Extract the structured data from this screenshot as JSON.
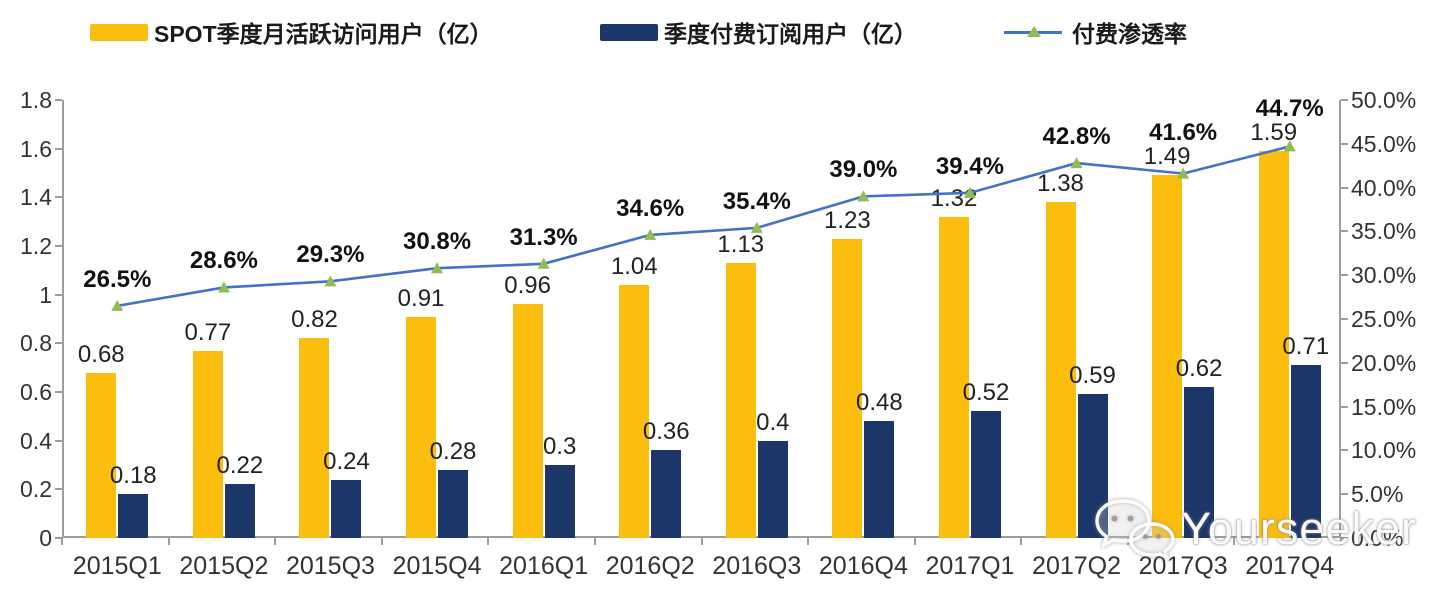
{
  "legend": [
    {
      "label": "SPOT季度月活跃访问用户（亿）",
      "color": "#FBBD0E",
      "type": "bar"
    },
    {
      "label": "季度付费订阅用户（亿）",
      "color": "#1B3668",
      "type": "bar"
    },
    {
      "label": "付费渗透率",
      "color": "#4472C4",
      "marker_color": "#90BC53",
      "type": "line"
    }
  ],
  "chart_data": {
    "type": "bar",
    "subtype": "grouped bars with overlaid line on secondary axis",
    "categories": [
      "2015Q1",
      "2015Q2",
      "2015Q3",
      "2015Q4",
      "2016Q1",
      "2016Q2",
      "2016Q3",
      "2016Q4",
      "2017Q1",
      "2017Q2",
      "2017Q3",
      "2017Q4"
    ],
    "series": [
      {
        "name": "SPOT季度月活跃访问用户（亿）",
        "type": "bar",
        "axis": "left",
        "color": "#FBBD0E",
        "values": [
          0.68,
          0.77,
          0.82,
          0.91,
          0.96,
          1.04,
          1.13,
          1.23,
          1.32,
          1.38,
          1.49,
          1.59
        ],
        "labels": [
          "0.68",
          "0.77",
          "0.82",
          "0.91",
          "0.96",
          "1.04",
          "1.13",
          "1.23",
          "1.32",
          "1.38",
          "1.49",
          "1.59"
        ]
      },
      {
        "name": "季度付费订阅用户（亿）",
        "type": "bar",
        "axis": "left",
        "color": "#1B3668",
        "values": [
          0.18,
          0.22,
          0.24,
          0.28,
          0.3,
          0.36,
          0.4,
          0.48,
          0.52,
          0.59,
          0.62,
          0.71
        ],
        "labels": [
          "0.18",
          "0.22",
          "0.24",
          "0.28",
          "0.3",
          "0.36",
          "0.4",
          "0.48",
          "0.52",
          "0.59",
          "0.62",
          "0.71"
        ]
      },
      {
        "name": "付费渗透率",
        "type": "line",
        "axis": "right",
        "color": "#4472C4",
        "marker": "triangle",
        "marker_color": "#90BC53",
        "values": [
          26.5,
          28.6,
          29.3,
          30.8,
          31.3,
          34.6,
          35.4,
          39.0,
          39.4,
          42.8,
          41.6,
          44.7
        ],
        "labels": [
          "26.5%",
          "28.6%",
          "29.3%",
          "30.8%",
          "31.3%",
          "34.6%",
          "35.4%",
          "39.0%",
          "39.4%",
          "42.8%",
          "41.6%",
          "44.7%"
        ]
      }
    ],
    "left_axis": {
      "min": 0,
      "max": 1.8,
      "tick_step": 0.2,
      "tick_labels": [
        "0",
        "0.2",
        "0.4",
        "0.6",
        "0.8",
        "1",
        "1.2",
        "1.4",
        "1.6",
        "1.8"
      ]
    },
    "right_axis": {
      "min": 0,
      "max": 50,
      "tick_step": 5,
      "tick_labels": [
        "0.0%",
        "5.0%",
        "10.0%",
        "15.0%",
        "20.0%",
        "25.0%",
        "30.0%",
        "35.0%",
        "40.0%",
        "45.0%",
        "50.0%"
      ]
    },
    "grid": false,
    "legend_position": "top",
    "axis_color": "#9d9d9d"
  },
  "watermark": {
    "text": "Yourseeker",
    "icon": "wechat-icon"
  }
}
